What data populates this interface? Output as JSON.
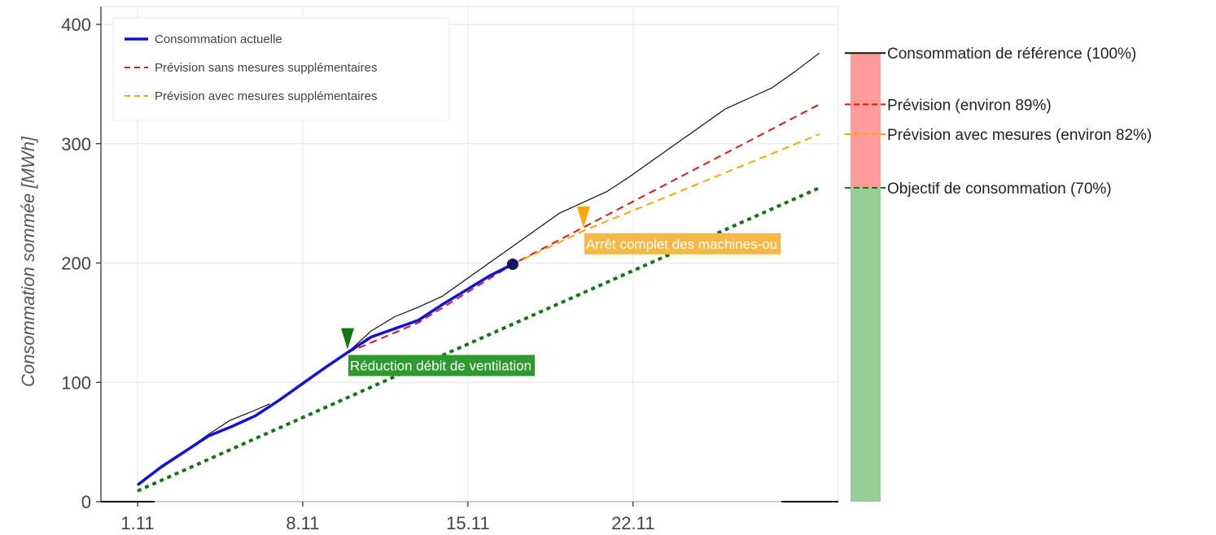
{
  "chart_data": {
    "type": "line",
    "ylabel": "Consommation sommée  [MWh]",
    "ylim": [
      0,
      400
    ],
    "yticks": [
      0,
      100,
      200,
      300,
      400
    ],
    "xlim": [
      1,
      30.7
    ],
    "xticks": [
      {
        "x": 1,
        "label": "1.11"
      },
      {
        "x": 8,
        "label": "8.11"
      },
      {
        "x": 15,
        "label": "15.11"
      },
      {
        "x": 22,
        "label": "22.11"
      }
    ],
    "grid": true,
    "legend_position": "top-left",
    "legend": [
      {
        "label": "Consommation actuelle",
        "color": "#1010e0",
        "style": "solid"
      },
      {
        "label": "Prévision sans mesures supplémentaires",
        "color": "#ee1111",
        "style": "dashed"
      },
      {
        "label": "Prévision avec mesures supplémentaires",
        "color": "#ffa500",
        "style": "dashed"
      }
    ],
    "series": [
      {
        "key": "reference",
        "color": "#111111",
        "style": "solid",
        "width": 1.2,
        "points": [
          [
            9.9,
            125
          ],
          [
            10.9,
            143
          ],
          [
            11.9,
            155
          ],
          [
            12.9,
            163
          ],
          [
            13.9,
            172
          ],
          [
            14.9,
            186
          ],
          [
            15.9,
            200
          ],
          [
            16.9,
            214
          ],
          [
            17.9,
            228
          ],
          [
            18.9,
            242
          ],
          [
            19.9,
            251
          ],
          [
            20.9,
            260
          ],
          [
            21.9,
            273
          ],
          [
            22.9,
            287
          ],
          [
            23.9,
            301
          ],
          [
            24.9,
            315
          ],
          [
            25.9,
            329
          ],
          [
            26.9,
            338
          ],
          [
            27.9,
            347
          ],
          [
            28.9,
            361
          ],
          [
            29.9,
            376
          ]
        ]
      },
      {
        "key": "reference_early",
        "color": "#111111",
        "style": "solid",
        "width": 1.2,
        "points": [
          [
            1,
            14
          ],
          [
            3.9,
            55
          ],
          [
            4.9,
            68
          ],
          [
            5.9,
            76
          ],
          [
            6.6,
            82
          ]
        ]
      },
      {
        "key": "forecast_no_measures",
        "color": "#ee1111",
        "style": "dashed",
        "width": 2,
        "points": [
          [
            9.9,
            125
          ],
          [
            12.9,
            150
          ],
          [
            16.9,
            199
          ],
          [
            29.9,
            333
          ]
        ]
      },
      {
        "key": "forecast_with_measures",
        "color": "#ffa500",
        "style": "dashed",
        "width": 2,
        "points": [
          [
            16.9,
            199
          ],
          [
            19.9,
            227
          ],
          [
            29.9,
            308
          ]
        ]
      },
      {
        "key": "target",
        "color": "#117711",
        "style": "dotted",
        "width": 4,
        "points": [
          [
            1,
            9
          ],
          [
            29.9,
            263
          ]
        ]
      },
      {
        "key": "actual",
        "color": "#1010e0",
        "style": "solid",
        "width": 3.5,
        "points": [
          [
            1,
            14
          ],
          [
            2,
            29
          ],
          [
            3,
            42
          ],
          [
            4,
            55
          ],
          [
            5,
            63
          ],
          [
            6,
            72
          ],
          [
            7,
            85
          ],
          [
            8,
            99
          ],
          [
            9,
            113
          ],
          [
            9.9,
            125
          ],
          [
            10.9,
            138
          ],
          [
            11.9,
            145
          ],
          [
            12.9,
            152
          ],
          [
            13.9,
            165
          ],
          [
            14.9,
            177
          ],
          [
            15.9,
            189
          ],
          [
            16.9,
            199
          ]
        ]
      }
    ],
    "current_point": {
      "x": 16.9,
      "y": 199,
      "color": "#111166"
    },
    "annotations": [
      {
        "x": 9.9,
        "y": 125,
        "text": "Réduction débit de ventilation",
        "color": "#117711",
        "bg": "#2e9a2e"
      },
      {
        "x": 19.9,
        "y": 227,
        "text": "Arrêt complet des machines-ou",
        "color": "#ffa500",
        "bg": "#f6b844"
      }
    ],
    "bar": {
      "red_range": [
        263,
        376
      ],
      "green_range": [
        0,
        263
      ],
      "red": "#ff9b9b",
      "green": "#96cc96"
    },
    "right_labels": [
      {
        "y": 376,
        "text": "Consommation de référence (100%)",
        "tick_color": "#111111"
      },
      {
        "y": 333,
        "text": "Prévision (environ 89%)",
        "tick_color": "#ee1111"
      },
      {
        "y": 308,
        "text": "Prévision avec mesures (environ 82%)",
        "tick_color": "#ffa500"
      },
      {
        "y": 263,
        "text": "Objectif de consommation (70%)",
        "tick_color": "#117711"
      }
    ]
  }
}
